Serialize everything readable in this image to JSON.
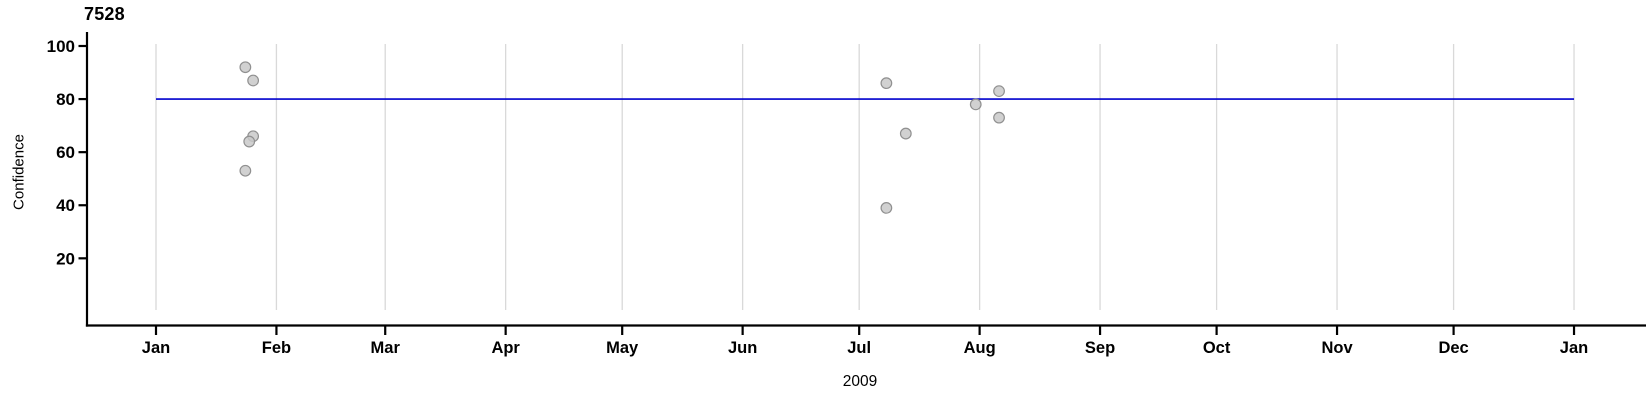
{
  "chart_data": {
    "type": "scatter",
    "title": "7528",
    "xlabel": "2009",
    "ylabel": "Confidence",
    "x_tick_labels": [
      "Jan",
      "Feb",
      "Mar",
      "Apr",
      "May",
      "Jun",
      "Jul",
      "Aug",
      "Sep",
      "Oct",
      "Nov",
      "Dec",
      "Jan"
    ],
    "x_domain": [
      "2009-01-01",
      "2010-01-01"
    ],
    "y_ticks": [
      20,
      40,
      60,
      80,
      100
    ],
    "ylim": [
      -6,
      105
    ],
    "grid": {
      "vertical_monthly": true,
      "color": "#d9d9d9"
    },
    "legend": "none",
    "reference_line": {
      "value": 80,
      "orientation": "horizontal",
      "color": "#0000cd"
    },
    "points": [
      {
        "date": "2009-01-24",
        "confidence": 92
      },
      {
        "date": "2009-01-26",
        "confidence": 87
      },
      {
        "date": "2009-01-26",
        "confidence": 66
      },
      {
        "date": "2009-01-25",
        "confidence": 64
      },
      {
        "date": "2009-01-24",
        "confidence": 53
      },
      {
        "date": "2009-07-08",
        "confidence": 86
      },
      {
        "date": "2009-07-08",
        "confidence": 39
      },
      {
        "date": "2009-07-13",
        "confidence": 67
      },
      {
        "date": "2009-07-31",
        "confidence": 78
      },
      {
        "date": "2009-08-06",
        "confidence": 83
      },
      {
        "date": "2009-08-06",
        "confidence": 73
      }
    ],
    "style": {
      "point_fill": "#c9c9c9",
      "point_stroke": "#909090",
      "point_radius": 5.3,
      "axis_color": "#000000",
      "text_color": "#000000"
    }
  }
}
